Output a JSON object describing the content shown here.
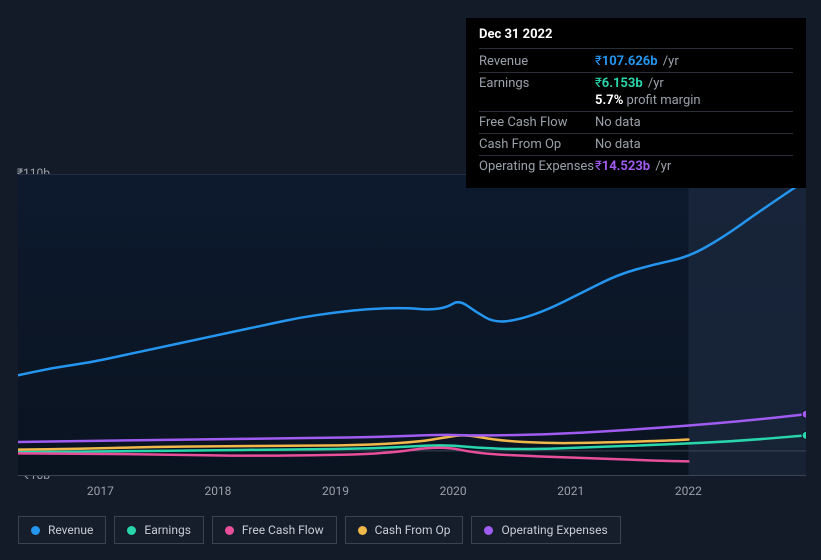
{
  "colors": {
    "background": "#131b28",
    "panel_bg": "#000000",
    "grid": "#2a2f36",
    "text_muted": "#9aa1aa",
    "text": "#ffffff",
    "revenue": "#2596f0",
    "earnings": "#29d6ac",
    "free_cash_flow": "#e84f9a",
    "cash_from_op": "#f0b84a",
    "operating_expenses": "#a05cf0",
    "nodata": "#9aa1aa"
  },
  "tooltip": {
    "date": "Dec 31 2022",
    "rows": [
      {
        "label": "Revenue",
        "currency": "₹",
        "value": "107.626b",
        "suffix": "/yr",
        "color_key": "revenue"
      },
      {
        "label": "Earnings",
        "currency": "₹",
        "value": "6.153b",
        "suffix": "/yr",
        "color_key": "earnings",
        "sub": {
          "percent": "5.7%",
          "text": "profit margin"
        }
      },
      {
        "label": "Free Cash Flow",
        "nodata": "No data"
      },
      {
        "label": "Cash From Op",
        "nodata": "No data"
      },
      {
        "label": "Operating Expenses",
        "currency": "₹",
        "value": "14.523b",
        "suffix": "/yr",
        "color_key": "operating_expenses"
      }
    ]
  },
  "chart": {
    "type": "line",
    "x_start_year": 2016.3,
    "x_end_year": 2023.0,
    "xticks": [
      2017,
      2018,
      2019,
      2020,
      2021,
      2022
    ],
    "ylim": [
      -10,
      110
    ],
    "yticks": [
      {
        "v": 110,
        "label": "₹110b"
      },
      {
        "v": 0,
        "label": "₹0"
      },
      {
        "v": -10,
        "label": "-₹10b"
      }
    ],
    "line_width": 2.5,
    "grid_y": [
      110,
      0,
      -10
    ],
    "forecast_from_year": 2022.0,
    "forecast_fill": "#1c2a3e",
    "plot_gradient_top": "#0d1a2e",
    "plot_gradient_bottom": "#0a1320",
    "series": [
      {
        "key": "revenue",
        "label": "Revenue",
        "color_key": "revenue",
        "x": [
          2016.3,
          2016.6,
          2016.9,
          2017.2,
          2017.5,
          2017.8,
          2018.1,
          2018.4,
          2018.7,
          2019.0,
          2019.3,
          2019.6,
          2019.8,
          2019.95,
          2020.05,
          2020.2,
          2020.35,
          2020.55,
          2020.8,
          2021.1,
          2021.4,
          2021.7,
          2022.0,
          2022.3,
          2022.6,
          2023.0
        ],
        "y": [
          30,
          33,
          35,
          38,
          41,
          44,
          47,
          50,
          53,
          55,
          56.5,
          56.8,
          56,
          57,
          60,
          55,
          51,
          52,
          56,
          63,
          70,
          74,
          77,
          85,
          95,
          107.626
        ],
        "end_marker": true
      },
      {
        "key": "earnings",
        "label": "Earnings",
        "color_key": "earnings",
        "x": [
          2016.3,
          2017.0,
          2017.8,
          2018.6,
          2019.4,
          2019.9,
          2020.2,
          2020.6,
          2021.2,
          2021.8,
          2022.4,
          2023.0
        ],
        "y": [
          -0.5,
          -0.3,
          0.2,
          0.5,
          1.0,
          2.5,
          1.2,
          0.5,
          1.5,
          2.5,
          3.8,
          6.153
        ],
        "end_marker": true
      },
      {
        "key": "free_cash_flow",
        "label": "Free Cash Flow",
        "color_key": "free_cash_flow",
        "x": [
          2016.3,
          2017.0,
          2017.6,
          2018.2,
          2018.8,
          2019.4,
          2019.9,
          2020.2,
          2020.6,
          2021.2,
          2021.8,
          2022.0
        ],
        "y": [
          -1.0,
          -1.2,
          -1.5,
          -2.0,
          -1.8,
          -1.2,
          2.0,
          -1.0,
          -2.0,
          -3.0,
          -4.0,
          -4.2
        ]
      },
      {
        "key": "cash_from_op",
        "label": "Cash From Op",
        "color_key": "cash_from_op",
        "x": [
          2016.3,
          2016.8,
          2017.4,
          2018.0,
          2018.6,
          2019.2,
          2019.7,
          2019.95,
          2020.1,
          2020.4,
          2020.8,
          2021.2,
          2021.8,
          2022.0
        ],
        "y": [
          0.5,
          0.8,
          1.5,
          1.8,
          2.0,
          2.2,
          3.5,
          5.5,
          6.5,
          4.0,
          3.0,
          3.2,
          4.0,
          4.5
        ]
      },
      {
        "key": "operating_expenses",
        "label": "Operating Expenses",
        "color_key": "operating_expenses",
        "x": [
          2016.3,
          2017.0,
          2017.8,
          2018.6,
          2019.4,
          2019.9,
          2020.2,
          2020.8,
          2021.4,
          2022.0,
          2022.5,
          2023.0
        ],
        "y": [
          3.5,
          4.0,
          4.5,
          5.0,
          5.5,
          6.5,
          6.0,
          6.5,
          8.0,
          10.0,
          12.0,
          14.523
        ],
        "end_marker": true
      }
    ]
  },
  "legend": [
    {
      "key": "revenue",
      "label": "Revenue"
    },
    {
      "key": "earnings",
      "label": "Earnings"
    },
    {
      "key": "free_cash_flow",
      "label": "Free Cash Flow"
    },
    {
      "key": "cash_from_op",
      "label": "Cash From Op"
    },
    {
      "key": "operating_expenses",
      "label": "Operating Expenses"
    }
  ]
}
